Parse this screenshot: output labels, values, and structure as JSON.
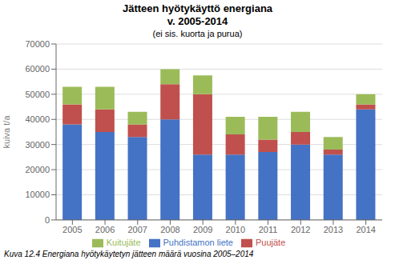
{
  "chart_data": {
    "type": "bar",
    "stacked": true,
    "title": [
      "Jätteen hyötykäyttö energiana",
      "v. 2005-2014"
    ],
    "subtitle": "(ei sis. kuorta ja purua)",
    "annotations": [
      "Kuva 12.4 Energiana hyötykäytetyn jätteen määrä vuosina 2005–2014"
    ],
    "ylabel": "kuiva t/a",
    "categories": [
      "2005",
      "2006",
      "2007",
      "2008",
      "2009",
      "2010",
      "2011",
      "2012",
      "2013",
      "2014"
    ],
    "series": [
      {
        "name": "Puhdistamon liete",
        "color": "#4472C4",
        "values": [
          38000,
          35000,
          33000,
          40000,
          26000,
          26000,
          27000,
          30000,
          26000,
          44000
        ]
      },
      {
        "name": "Puujäte",
        "color": "#C0504D",
        "values": [
          8000,
          9000,
          5000,
          14000,
          24000,
          8000,
          5000,
          5000,
          2000,
          2000
        ]
      },
      {
        "name": "Kuitujäte",
        "color": "#9BBB59",
        "values": [
          7000,
          9000,
          5000,
          6000,
          7500,
          7000,
          9000,
          8000,
          5000,
          4000
        ]
      }
    ],
    "ylim": [
      0,
      70000
    ],
    "yticks": [
      0,
      10000,
      20000,
      30000,
      40000,
      50000,
      60000,
      70000
    ],
    "grid": true,
    "legend": "bottom"
  }
}
